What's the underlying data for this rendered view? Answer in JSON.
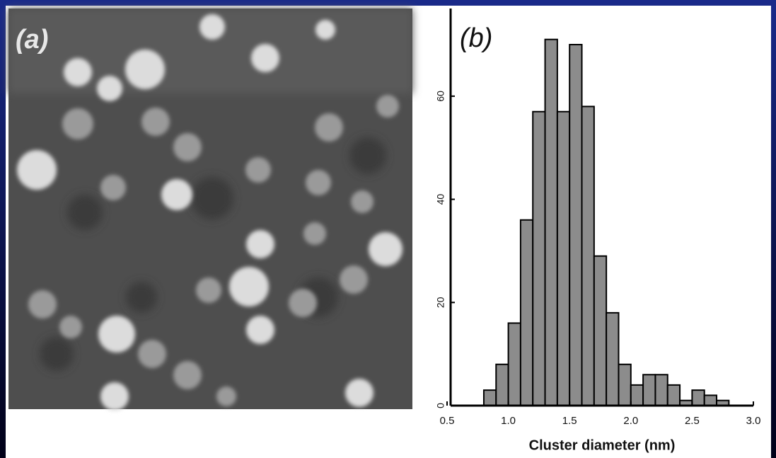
{
  "chart_data": {
    "type": "histogram",
    "panel_labels": [
      "(a)",
      "(b)"
    ],
    "xlabel": "Cluster diameter (nm)",
    "bins": [
      0.8,
      0.9,
      1.0,
      1.1,
      1.2,
      1.3,
      1.4,
      1.5,
      1.6,
      1.7,
      1.8,
      1.9,
      2.0,
      2.1,
      2.2,
      2.3,
      2.4,
      2.5,
      2.6,
      2.7,
      2.8
    ],
    "values": [
      3,
      8,
      16,
      36,
      57,
      71,
      57,
      70,
      58,
      29,
      18,
      8,
      4,
      6,
      6,
      4,
      1,
      3,
      2,
      1
    ],
    "color": "#8c8c8c",
    "xlim": [
      0.5,
      3.0
    ],
    "xticks": [
      0.5,
      {
        "value": 1,
        "label": "1.0"
      },
      1.5,
      {
        "value": 2,
        "label": "2.0"
      },
      2.5,
      {
        "value": 3,
        "label": "3.0"
      }
    ],
    "ylim": [
      0,
      77
    ],
    "yticks": [
      0,
      20,
      40,
      60
    ]
  }
}
